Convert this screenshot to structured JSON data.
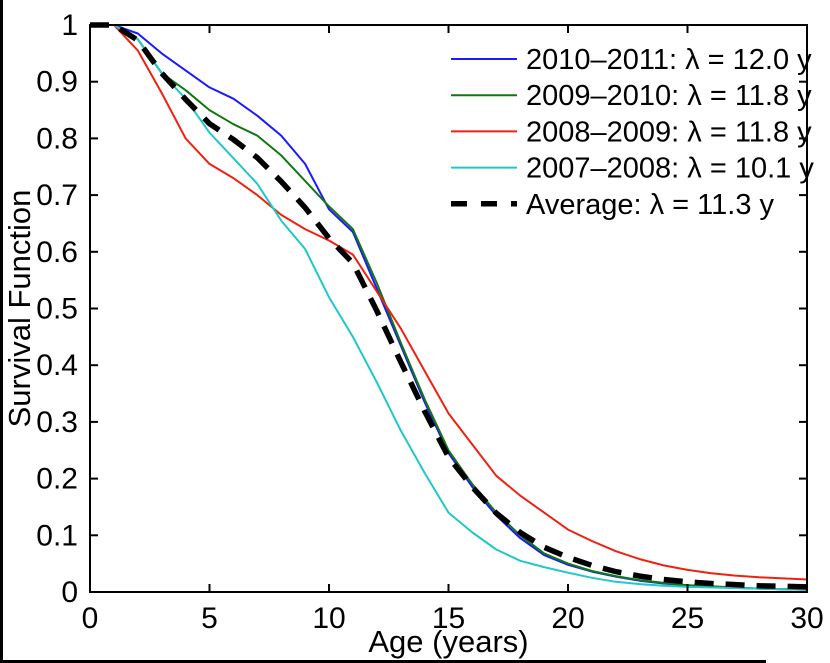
{
  "chart_data": {
    "type": "line",
    "title": "",
    "xlabel": "Age (years)",
    "ylabel": "Survival Function",
    "xlim": [
      0,
      30
    ],
    "ylim": [
      0,
      1
    ],
    "xticks": [
      0,
      5,
      10,
      15,
      20,
      25,
      30
    ],
    "xtick_labels": [
      "0",
      "5",
      "10",
      "15",
      "20",
      "25",
      "30"
    ],
    "yticks": [
      0,
      0.1,
      0.2,
      0.3,
      0.4,
      0.5,
      0.6,
      0.7,
      0.8,
      0.9,
      1
    ],
    "ytick_labels": [
      "0",
      "0.1",
      "0.2",
      "0.3",
      "0.4",
      "0.5",
      "0.6",
      "0.7",
      "0.8",
      "0.9",
      "1"
    ],
    "grid": false,
    "legend_position": "top-right",
    "legend_has_box": false,
    "axis_color": "#000000",
    "x": [
      0,
      1,
      2,
      3,
      4,
      5,
      6,
      7,
      8,
      9,
      10,
      11,
      12,
      13,
      14,
      15,
      16,
      17,
      18,
      19,
      20,
      21,
      22,
      23,
      24,
      25,
      26,
      27,
      28,
      29,
      30
    ],
    "series": [
      {
        "name": "2010-2011",
        "label": "2010–2011: λ = 12.0 y",
        "color": "#1a1aff",
        "style": "solid",
        "values": [
          1.0,
          1.0,
          0.985,
          0.95,
          0.92,
          0.89,
          0.87,
          0.84,
          0.805,
          0.755,
          0.675,
          0.635,
          0.535,
          0.435,
          0.335,
          0.245,
          0.185,
          0.135,
          0.095,
          0.065,
          0.048,
          0.036,
          0.027,
          0.02,
          0.015,
          0.012,
          0.009,
          0.007,
          0.006,
          0.005,
          0.004
        ]
      },
      {
        "name": "2009-2010",
        "label": "2009–2010: λ = 11.8 y",
        "color": "#117711",
        "style": "solid",
        "values": [
          1.0,
          1.0,
          0.975,
          0.915,
          0.885,
          0.85,
          0.825,
          0.805,
          0.77,
          0.725,
          0.68,
          0.64,
          0.545,
          0.44,
          0.34,
          0.25,
          0.19,
          0.14,
          0.1,
          0.068,
          0.05,
          0.037,
          0.028,
          0.021,
          0.016,
          0.012,
          0.01,
          0.008,
          0.006,
          0.005,
          0.005
        ]
      },
      {
        "name": "2008-2009",
        "label": "2008–2009: λ = 11.8 y",
        "color": "#ee2211",
        "style": "solid",
        "values": [
          1.0,
          1.0,
          0.955,
          0.88,
          0.8,
          0.755,
          0.73,
          0.7,
          0.665,
          0.64,
          0.62,
          0.595,
          0.53,
          0.465,
          0.39,
          0.315,
          0.26,
          0.205,
          0.17,
          0.14,
          0.11,
          0.09,
          0.072,
          0.058,
          0.047,
          0.039,
          0.033,
          0.029,
          0.026,
          0.024,
          0.022
        ]
      },
      {
        "name": "2007-2008",
        "label": "2007–2008: λ = 10.1 y",
        "color": "#20c8c8",
        "style": "solid",
        "values": [
          1.0,
          1.0,
          0.975,
          0.915,
          0.87,
          0.81,
          0.765,
          0.72,
          0.655,
          0.605,
          0.52,
          0.45,
          0.37,
          0.285,
          0.21,
          0.14,
          0.105,
          0.075,
          0.055,
          0.044,
          0.034,
          0.025,
          0.018,
          0.014,
          0.011,
          0.009,
          0.008,
          0.007,
          0.006,
          0.005,
          0.004
        ]
      },
      {
        "name": "Average",
        "label": "Average: λ = 11.3 y",
        "color": "#000000",
        "style": "dashed",
        "values": [
          1.0,
          1.0,
          0.973,
          0.915,
          0.869,
          0.826,
          0.798,
          0.766,
          0.724,
          0.678,
          0.624,
          0.58,
          0.496,
          0.406,
          0.319,
          0.238,
          0.185,
          0.139,
          0.105,
          0.079,
          0.061,
          0.047,
          0.036,
          0.028,
          0.022,
          0.018,
          0.015,
          0.013,
          0.011,
          0.01,
          0.009
        ]
      }
    ]
  }
}
